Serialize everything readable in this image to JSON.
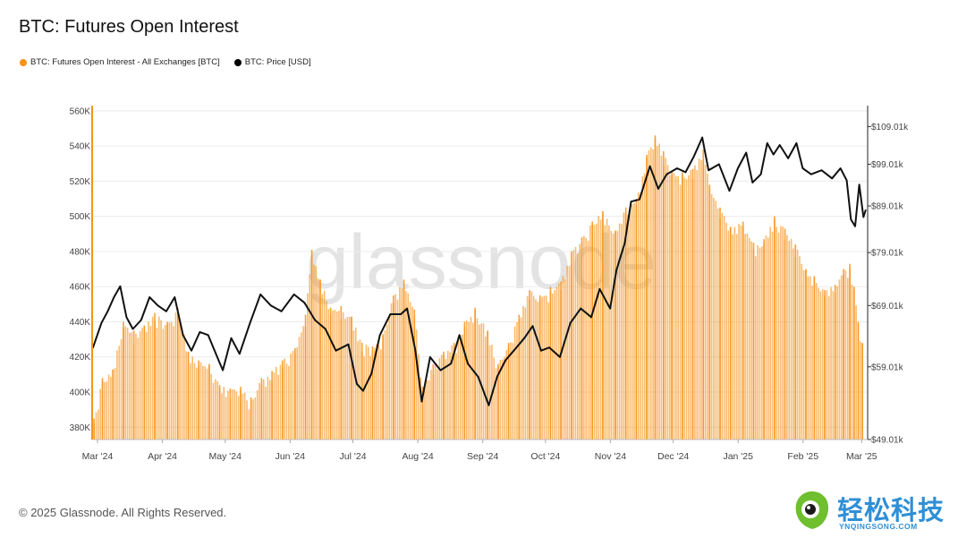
{
  "title": "BTC: Futures Open Interest",
  "legend": [
    {
      "label": "BTC: Futures Open Interest - All Exchanges [BTC]",
      "color": "#f7931a"
    },
    {
      "label": "BTC: Price [USD]",
      "color": "#000000"
    }
  ],
  "watermark": "glassnode",
  "footer": "© 2025 Glassnode. All Rights Reserved.",
  "brand": {
    "name": "轻松科技",
    "sub": "YNQINGSONG.COM",
    "icon": "leaf-logo-icon"
  },
  "chart_data": {
    "type": "bar",
    "title": "BTC: Futures Open Interest",
    "grid": "horizontal",
    "legend_placement": "top-left",
    "x_ticks": [
      "Mar '24",
      "Apr '24",
      "May '24",
      "Jun '24",
      "Jul '24",
      "Aug '24",
      "Sep '24",
      "Oct '24",
      "Nov '24",
      "Dec '24",
      "Jan '25",
      "Feb '25",
      "Mar '25"
    ],
    "y_left": {
      "ticks": [
        "380K",
        "400K",
        "420K",
        "440K",
        "460K",
        "480K",
        "500K",
        "520K",
        "540K",
        "560K"
      ],
      "range": [
        373000,
        563000
      ]
    },
    "y_right": {
      "ticks": [
        "$49.01k",
        "$59.01k",
        "$69.01k",
        "$79.01k",
        "$89.01k",
        "$99.01k",
        "$109.01k"
      ],
      "range": [
        49010,
        115000
      ],
      "scale": "log"
    },
    "series": [
      {
        "name": "BTC: Futures Open Interest - All Exchanges [BTC]",
        "type": "bar",
        "axis": "left",
        "color": "#f7931a",
        "points": [
          [
            "2024-03-01",
            385000
          ],
          [
            "2024-03-05",
            408000
          ],
          [
            "2024-03-10",
            413000
          ],
          [
            "2024-03-15",
            440000
          ],
          [
            "2024-03-20",
            435000
          ],
          [
            "2024-03-25",
            438000
          ],
          [
            "2024-03-30",
            445000
          ],
          [
            "2024-04-05",
            440000
          ],
          [
            "2024-04-10",
            448000
          ],
          [
            "2024-04-15",
            423000
          ],
          [
            "2024-04-20",
            418000
          ],
          [
            "2024-04-25",
            416000
          ],
          [
            "2024-04-30",
            404000
          ],
          [
            "2024-05-05",
            402000
          ],
          [
            "2024-05-10",
            403000
          ],
          [
            "2024-05-15",
            397000
          ],
          [
            "2024-05-20",
            408000
          ],
          [
            "2024-05-25",
            412000
          ],
          [
            "2024-05-30",
            418000
          ],
          [
            "2024-06-05",
            425000
          ],
          [
            "2024-06-10",
            444000
          ],
          [
            "2024-06-13",
            481000
          ],
          [
            "2024-06-17",
            464000
          ],
          [
            "2024-06-22",
            448000
          ],
          [
            "2024-06-27",
            449000
          ],
          [
            "2024-07-02",
            443000
          ],
          [
            "2024-07-07",
            428000
          ],
          [
            "2024-07-12",
            426000
          ],
          [
            "2024-07-17",
            433000
          ],
          [
            "2024-07-22",
            455000
          ],
          [
            "2024-07-27",
            464000
          ],
          [
            "2024-08-01",
            447000
          ],
          [
            "2024-08-05",
            403000
          ],
          [
            "2024-08-10",
            416000
          ],
          [
            "2024-08-15",
            423000
          ],
          [
            "2024-08-20",
            428000
          ],
          [
            "2024-08-25",
            440000
          ],
          [
            "2024-08-30",
            448000
          ],
          [
            "2024-09-05",
            435000
          ],
          [
            "2024-09-10",
            416000
          ],
          [
            "2024-09-15",
            428000
          ],
          [
            "2024-09-20",
            444000
          ],
          [
            "2024-09-25",
            458000
          ],
          [
            "2024-09-30",
            455000
          ],
          [
            "2024-10-05",
            460000
          ],
          [
            "2024-10-10",
            463000
          ],
          [
            "2024-10-15",
            480000
          ],
          [
            "2024-10-20",
            488000
          ],
          [
            "2024-10-25",
            497000
          ],
          [
            "2024-10-30",
            503000
          ],
          [
            "2024-11-05",
            492000
          ],
          [
            "2024-11-10",
            505000
          ],
          [
            "2024-11-15",
            510000
          ],
          [
            "2024-11-20",
            535000
          ],
          [
            "2024-11-24",
            546000
          ],
          [
            "2024-11-28",
            537000
          ],
          [
            "2024-12-02",
            526000
          ],
          [
            "2024-12-07",
            525000
          ],
          [
            "2024-12-12",
            527000
          ],
          [
            "2024-12-17",
            538000
          ],
          [
            "2024-12-20",
            518000
          ],
          [
            "2024-12-25",
            505000
          ],
          [
            "2024-12-30",
            494000
          ],
          [
            "2025-01-05",
            497000
          ],
          [
            "2025-01-10",
            485000
          ],
          [
            "2025-01-15",
            487000
          ],
          [
            "2025-01-20",
            500000
          ],
          [
            "2025-01-25",
            493000
          ],
          [
            "2025-01-30",
            484000
          ],
          [
            "2025-02-04",
            470000
          ],
          [
            "2025-02-08",
            466000
          ],
          [
            "2025-02-13",
            458000
          ],
          [
            "2025-02-18",
            461000
          ],
          [
            "2025-02-22",
            470000
          ],
          [
            "2025-02-25",
            473000
          ],
          [
            "2025-02-27",
            460000
          ],
          [
            "2025-03-01",
            440000
          ],
          [
            "2025-03-03",
            428000
          ]
        ]
      },
      {
        "name": "BTC: Price [USD]",
        "type": "line",
        "axis": "right",
        "color": "#000000",
        "points": [
          [
            "2024-03-01",
            62000
          ],
          [
            "2024-03-05",
            66000
          ],
          [
            "2024-03-08",
            68000
          ],
          [
            "2024-03-11",
            70500
          ],
          [
            "2024-03-14",
            72500
          ],
          [
            "2024-03-17",
            67000
          ],
          [
            "2024-03-20",
            65000
          ],
          [
            "2024-03-24",
            66500
          ],
          [
            "2024-03-28",
            70500
          ],
          [
            "2024-04-01",
            69000
          ],
          [
            "2024-04-05",
            68000
          ],
          [
            "2024-04-09",
            70500
          ],
          [
            "2024-04-13",
            64000
          ],
          [
            "2024-04-17",
            61500
          ],
          [
            "2024-04-21",
            64500
          ],
          [
            "2024-04-25",
            64000
          ],
          [
            "2024-04-30",
            60000
          ],
          [
            "2024-05-02",
            58500
          ],
          [
            "2024-05-06",
            63500
          ],
          [
            "2024-05-10",
            61000
          ],
          [
            "2024-05-15",
            66000
          ],
          [
            "2024-05-20",
            71000
          ],
          [
            "2024-05-25",
            69000
          ],
          [
            "2024-05-30",
            68000
          ],
          [
            "2024-06-05",
            71000
          ],
          [
            "2024-06-10",
            69500
          ],
          [
            "2024-06-15",
            66500
          ],
          [
            "2024-06-20",
            65000
          ],
          [
            "2024-06-25",
            61500
          ],
          [
            "2024-07-01",
            62500
          ],
          [
            "2024-07-05",
            56500
          ],
          [
            "2024-07-08",
            55500
          ],
          [
            "2024-07-12",
            58000
          ],
          [
            "2024-07-16",
            64000
          ],
          [
            "2024-07-21",
            67500
          ],
          [
            "2024-07-26",
            67500
          ],
          [
            "2024-07-29",
            68500
          ],
          [
            "2024-08-02",
            61500
          ],
          [
            "2024-08-05",
            54000
          ],
          [
            "2024-08-09",
            60500
          ],
          [
            "2024-08-14",
            58500
          ],
          [
            "2024-08-19",
            59500
          ],
          [
            "2024-08-23",
            64000
          ],
          [
            "2024-08-27",
            59500
          ],
          [
            "2024-09-01",
            57500
          ],
          [
            "2024-09-06",
            53500
          ],
          [
            "2024-09-10",
            57500
          ],
          [
            "2024-09-14",
            60000
          ],
          [
            "2024-09-18",
            61500
          ],
          [
            "2024-09-23",
            63500
          ],
          [
            "2024-09-27",
            65500
          ],
          [
            "2024-10-01",
            61500
          ],
          [
            "2024-10-05",
            62000
          ],
          [
            "2024-10-10",
            60500
          ],
          [
            "2024-10-15",
            66000
          ],
          [
            "2024-10-20",
            68500
          ],
          [
            "2024-10-25",
            67000
          ],
          [
            "2024-10-29",
            72000
          ],
          [
            "2024-11-03",
            68500
          ],
          [
            "2024-11-06",
            75500
          ],
          [
            "2024-11-10",
            81000
          ],
          [
            "2024-11-13",
            90000
          ],
          [
            "2024-11-17",
            90500
          ],
          [
            "2024-11-22",
            98500
          ],
          [
            "2024-11-26",
            93000
          ],
          [
            "2024-11-30",
            96500
          ],
          [
            "2024-12-05",
            98000
          ],
          [
            "2024-12-09",
            97000
          ],
          [
            "2024-12-13",
            101000
          ],
          [
            "2024-12-17",
            106000
          ],
          [
            "2024-12-20",
            97500
          ],
          [
            "2024-12-25",
            99000
          ],
          [
            "2024-12-30",
            92500
          ],
          [
            "2025-01-03",
            98000
          ],
          [
            "2025-01-07",
            102000
          ],
          [
            "2025-01-10",
            94500
          ],
          [
            "2025-01-14",
            96500
          ],
          [
            "2025-01-17",
            104500
          ],
          [
            "2025-01-20",
            101500
          ],
          [
            "2025-01-23",
            104000
          ],
          [
            "2025-01-27",
            100500
          ],
          [
            "2025-01-31",
            104500
          ],
          [
            "2025-02-03",
            98000
          ],
          [
            "2025-02-07",
            96500
          ],
          [
            "2025-02-12",
            97500
          ],
          [
            "2025-02-17",
            95500
          ],
          [
            "2025-02-21",
            98000
          ],
          [
            "2025-02-24",
            95000
          ],
          [
            "2025-02-26",
            86000
          ],
          [
            "2025-02-28",
            84500
          ],
          [
            "2025-03-02",
            94000
          ],
          [
            "2025-03-04",
            86500
          ],
          [
            "2025-03-05",
            88000
          ]
        ]
      }
    ]
  }
}
